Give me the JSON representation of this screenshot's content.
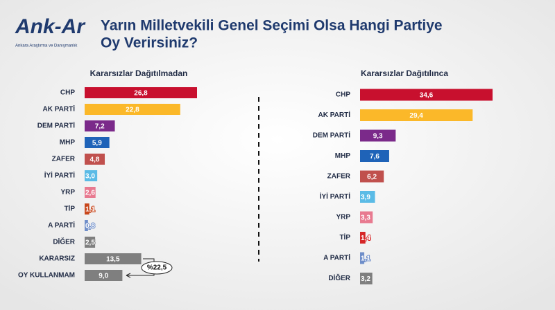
{
  "header": {
    "logo": "Ank-Ar",
    "tagline": "Ankara Araştırma ve Danışmanlık",
    "title_line1": "Yarın Milletvekili Genel Seçimi Olsa Hangi Partiye",
    "title_line2": "Oy Verirsiniz?"
  },
  "chart_data": [
    {
      "type": "barh",
      "title": "Kararsızlar Dağıtılmadan",
      "categories": [
        "CHP",
        "AK PARTİ",
        "DEM PARTİ",
        "MHP",
        "ZAFER",
        "İYİ PARTİ",
        "YRP",
        "TİP",
        "A PARTİ",
        "DİĞER",
        "KARARSIZ",
        "OY KULLANMAM"
      ],
      "values": [
        26.8,
        22.8,
        7.2,
        5.9,
        4.8,
        3.0,
        2.6,
        1.1,
        0.8,
        2.5,
        13.5,
        9.0
      ],
      "value_labels": [
        "26,8",
        "22,8",
        "7,2",
        "5,9",
        "4,8",
        "3,0",
        "2,6",
        "1,1",
        "0,8",
        "2,5",
        "13,5",
        "9,0"
      ],
      "colors": [
        "#c8102e",
        "#fbb829",
        "#7b2a8a",
        "#1f63b8",
        "#c0504d",
        "#5bbbe6",
        "#e87a90",
        "#c8471c",
        "#6f8ec9",
        "#7f7f7f",
        "#7f7f7f",
        "#7f7f7f"
      ],
      "annotation": "%22,5"
    },
    {
      "type": "barh",
      "title": "Kararsızlar Dağıtılınca",
      "categories": [
        "CHP",
        "AK PARTİ",
        "DEM PARTİ",
        "MHP",
        "ZAFER",
        "İYİ PARTİ",
        "YRP",
        "TİP",
        "A PARTİ",
        "DİĞER"
      ],
      "values": [
        34.6,
        29.4,
        9.3,
        7.6,
        6.2,
        3.9,
        3.3,
        1.4,
        1.1,
        3.2
      ],
      "value_labels": [
        "34,6",
        "29,4",
        "9,3",
        "7,6",
        "6,2",
        "3,9",
        "3,3",
        "1,4",
        "1,1",
        "3,2"
      ],
      "colors": [
        "#c8102e",
        "#fbb829",
        "#7b2a8a",
        "#1f63b8",
        "#c0504d",
        "#5bbbe6",
        "#e87a90",
        "#d62728",
        "#6f8ec9",
        "#7f7f7f"
      ]
    }
  ]
}
